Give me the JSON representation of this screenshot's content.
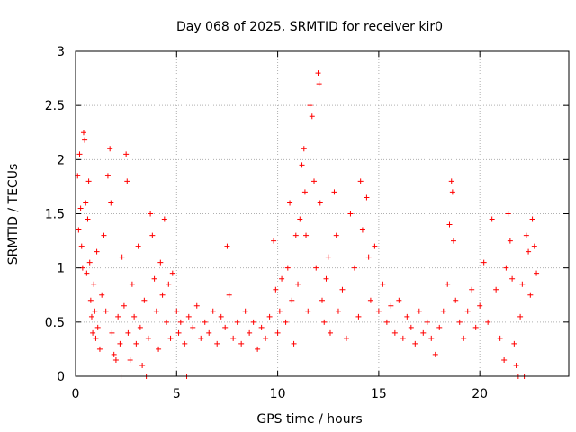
{
  "chart_data": {
    "type": "scatter",
    "title": "Day 068 of 2025, SRMTID for receiver kir0",
    "xlabel": "GPS time / hours",
    "ylabel": "SRMTID / TECUs",
    "xlim": [
      0,
      24.4
    ],
    "ylim": [
      0,
      3
    ],
    "xticks": [
      0,
      5,
      10,
      15,
      20
    ],
    "xtick_labels": [
      "0",
      "5",
      "10",
      "15",
      "20"
    ],
    "yticks": [
      0,
      0.5,
      1,
      1.5,
      2,
      2.5,
      3
    ],
    "ytick_labels": [
      "0",
      "0.5",
      "1",
      "1.5",
      "2",
      "2.5",
      "3"
    ],
    "grid": true,
    "marker": "+",
    "color": "#ff0000",
    "series": [
      {
        "name": "SRMTID",
        "points": [
          [
            0.1,
            1.85
          ],
          [
            0.15,
            1.35
          ],
          [
            0.2,
            2.05
          ],
          [
            0.25,
            1.55
          ],
          [
            0.3,
            1.2
          ],
          [
            0.35,
            1.0
          ],
          [
            0.4,
            2.25
          ],
          [
            0.45,
            2.18
          ],
          [
            0.5,
            1.6
          ],
          [
            0.55,
            0.95
          ],
          [
            0.6,
            1.45
          ],
          [
            0.65,
            1.8
          ],
          [
            0.7,
            1.05
          ],
          [
            0.75,
            0.7
          ],
          [
            0.8,
            0.55
          ],
          [
            0.85,
            0.4
          ],
          [
            0.9,
            0.85
          ],
          [
            0.95,
            0.6
          ],
          [
            1.0,
            0.35
          ],
          [
            1.05,
            1.15
          ],
          [
            1.1,
            0.45
          ],
          [
            1.2,
            0.25
          ],
          [
            1.3,
            0.75
          ],
          [
            1.4,
            1.3
          ],
          [
            1.5,
            0.6
          ],
          [
            1.6,
            1.85
          ],
          [
            1.7,
            2.1
          ],
          [
            1.75,
            1.6
          ],
          [
            1.8,
            0.4
          ],
          [
            1.9,
            0.2
          ],
          [
            2.0,
            0.15
          ],
          [
            2.1,
            0.55
          ],
          [
            2.2,
            0.3
          ],
          [
            2.25,
            0.0
          ],
          [
            2.3,
            1.1
          ],
          [
            2.4,
            0.65
          ],
          [
            2.5,
            2.05
          ],
          [
            2.55,
            1.8
          ],
          [
            2.6,
            0.4
          ],
          [
            2.7,
            0.15
          ],
          [
            2.8,
            0.85
          ],
          [
            2.9,
            0.55
          ],
          [
            3.0,
            0.3
          ],
          [
            3.1,
            1.2
          ],
          [
            3.2,
            0.45
          ],
          [
            3.3,
            0.1
          ],
          [
            3.4,
            0.7
          ],
          [
            3.5,
            0.0
          ],
          [
            3.6,
            0.35
          ],
          [
            3.7,
            1.5
          ],
          [
            3.8,
            1.3
          ],
          [
            3.9,
            0.9
          ],
          [
            4.0,
            0.6
          ],
          [
            4.1,
            0.25
          ],
          [
            4.2,
            1.05
          ],
          [
            4.3,
            0.75
          ],
          [
            4.4,
            1.45
          ],
          [
            4.5,
            0.5
          ],
          [
            4.6,
            0.85
          ],
          [
            4.7,
            0.35
          ],
          [
            4.8,
            0.95
          ],
          [
            5.0,
            0.6
          ],
          [
            5.1,
            0.4
          ],
          [
            5.2,
            0.5
          ],
          [
            5.4,
            0.3
          ],
          [
            5.5,
            0.0
          ],
          [
            5.6,
            0.55
          ],
          [
            5.8,
            0.45
          ],
          [
            6.0,
            0.65
          ],
          [
            6.2,
            0.35
          ],
          [
            6.4,
            0.5
          ],
          [
            6.6,
            0.4
          ],
          [
            6.8,
            0.6
          ],
          [
            7.0,
            0.3
          ],
          [
            7.2,
            0.55
          ],
          [
            7.4,
            0.45
          ],
          [
            7.5,
            1.2
          ],
          [
            7.6,
            0.75
          ],
          [
            7.8,
            0.35
          ],
          [
            8.0,
            0.5
          ],
          [
            8.2,
            0.3
          ],
          [
            8.4,
            0.6
          ],
          [
            8.6,
            0.4
          ],
          [
            8.8,
            0.5
          ],
          [
            9.0,
            0.25
          ],
          [
            9.2,
            0.45
          ],
          [
            9.4,
            0.35
          ],
          [
            9.6,
            0.55
          ],
          [
            9.8,
            1.25
          ],
          [
            9.9,
            0.8
          ],
          [
            10.0,
            0.4
          ],
          [
            10.1,
            0.6
          ],
          [
            10.2,
            0.9
          ],
          [
            10.4,
            0.5
          ],
          [
            10.5,
            1.0
          ],
          [
            10.6,
            1.6
          ],
          [
            10.7,
            0.7
          ],
          [
            10.8,
            0.3
          ],
          [
            10.9,
            1.3
          ],
          [
            11.0,
            0.85
          ],
          [
            11.1,
            1.45
          ],
          [
            11.2,
            1.95
          ],
          [
            11.3,
            2.1
          ],
          [
            11.35,
            1.7
          ],
          [
            11.4,
            1.3
          ],
          [
            11.5,
            0.6
          ],
          [
            11.6,
            2.5
          ],
          [
            11.7,
            2.4
          ],
          [
            11.8,
            1.8
          ],
          [
            11.9,
            1.0
          ],
          [
            12.0,
            2.8
          ],
          [
            12.05,
            2.7
          ],
          [
            12.1,
            1.6
          ],
          [
            12.2,
            0.7
          ],
          [
            12.3,
            0.5
          ],
          [
            12.4,
            0.9
          ],
          [
            12.5,
            1.1
          ],
          [
            12.6,
            0.4
          ],
          [
            12.8,
            1.7
          ],
          [
            12.9,
            1.3
          ],
          [
            13.0,
            0.6
          ],
          [
            13.2,
            0.8
          ],
          [
            13.4,
            0.35
          ],
          [
            13.6,
            1.5
          ],
          [
            13.8,
            1.0
          ],
          [
            14.0,
            0.55
          ],
          [
            14.1,
            1.8
          ],
          [
            14.2,
            1.35
          ],
          [
            14.4,
            1.65
          ],
          [
            14.5,
            1.1
          ],
          [
            14.6,
            0.7
          ],
          [
            14.8,
            1.2
          ],
          [
            15.0,
            0.6
          ],
          [
            15.2,
            0.85
          ],
          [
            15.4,
            0.5
          ],
          [
            15.6,
            0.65
          ],
          [
            15.8,
            0.4
          ],
          [
            16.0,
            0.7
          ],
          [
            16.2,
            0.35
          ],
          [
            16.4,
            0.55
          ],
          [
            16.6,
            0.45
          ],
          [
            16.8,
            0.3
          ],
          [
            17.0,
            0.6
          ],
          [
            17.2,
            0.4
          ],
          [
            17.4,
            0.5
          ],
          [
            17.6,
            0.35
          ],
          [
            17.8,
            0.2
          ],
          [
            18.0,
            0.45
          ],
          [
            18.2,
            0.6
          ],
          [
            18.4,
            0.85
          ],
          [
            18.5,
            1.4
          ],
          [
            18.6,
            1.8
          ],
          [
            18.65,
            1.7
          ],
          [
            18.7,
            1.25
          ],
          [
            18.8,
            0.7
          ],
          [
            19.0,
            0.5
          ],
          [
            19.2,
            0.35
          ],
          [
            19.4,
            0.6
          ],
          [
            19.6,
            0.8
          ],
          [
            19.8,
            0.45
          ],
          [
            20.0,
            0.65
          ],
          [
            20.2,
            1.05
          ],
          [
            20.4,
            0.5
          ],
          [
            20.6,
            1.45
          ],
          [
            20.8,
            0.8
          ],
          [
            21.0,
            0.35
          ],
          [
            21.2,
            0.15
          ],
          [
            21.3,
            1.0
          ],
          [
            21.4,
            1.5
          ],
          [
            21.5,
            1.25
          ],
          [
            21.6,
            0.9
          ],
          [
            21.7,
            0.3
          ],
          [
            21.8,
            0.1
          ],
          [
            21.9,
            0.0
          ],
          [
            22.0,
            0.55
          ],
          [
            22.1,
            0.85
          ],
          [
            22.2,
            0.0
          ],
          [
            22.3,
            1.3
          ],
          [
            22.4,
            1.15
          ],
          [
            22.5,
            0.75
          ],
          [
            22.6,
            1.45
          ],
          [
            22.7,
            1.2
          ],
          [
            22.8,
            0.95
          ]
        ]
      }
    ]
  }
}
